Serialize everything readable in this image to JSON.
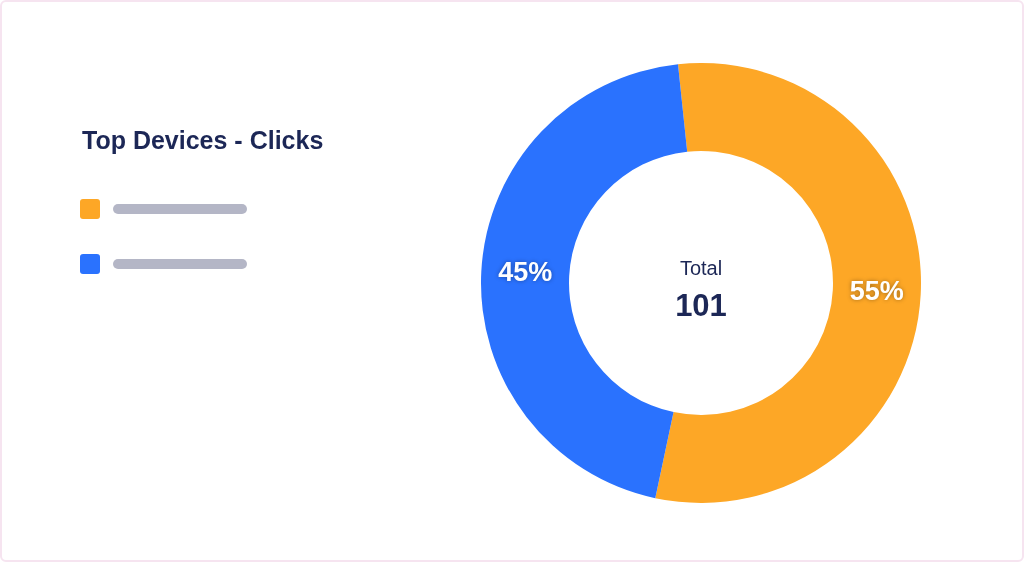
{
  "chart_data": {
    "type": "donut",
    "title": "Top Devices - Clicks",
    "categories": [
      null,
      null
    ],
    "values": [
      55,
      45
    ],
    "colors": [
      "#fda726",
      "#2a72fe"
    ],
    "value_labels": [
      "55%",
      "45%"
    ],
    "annotations": [
      "Total",
      "101"
    ]
  }
}
